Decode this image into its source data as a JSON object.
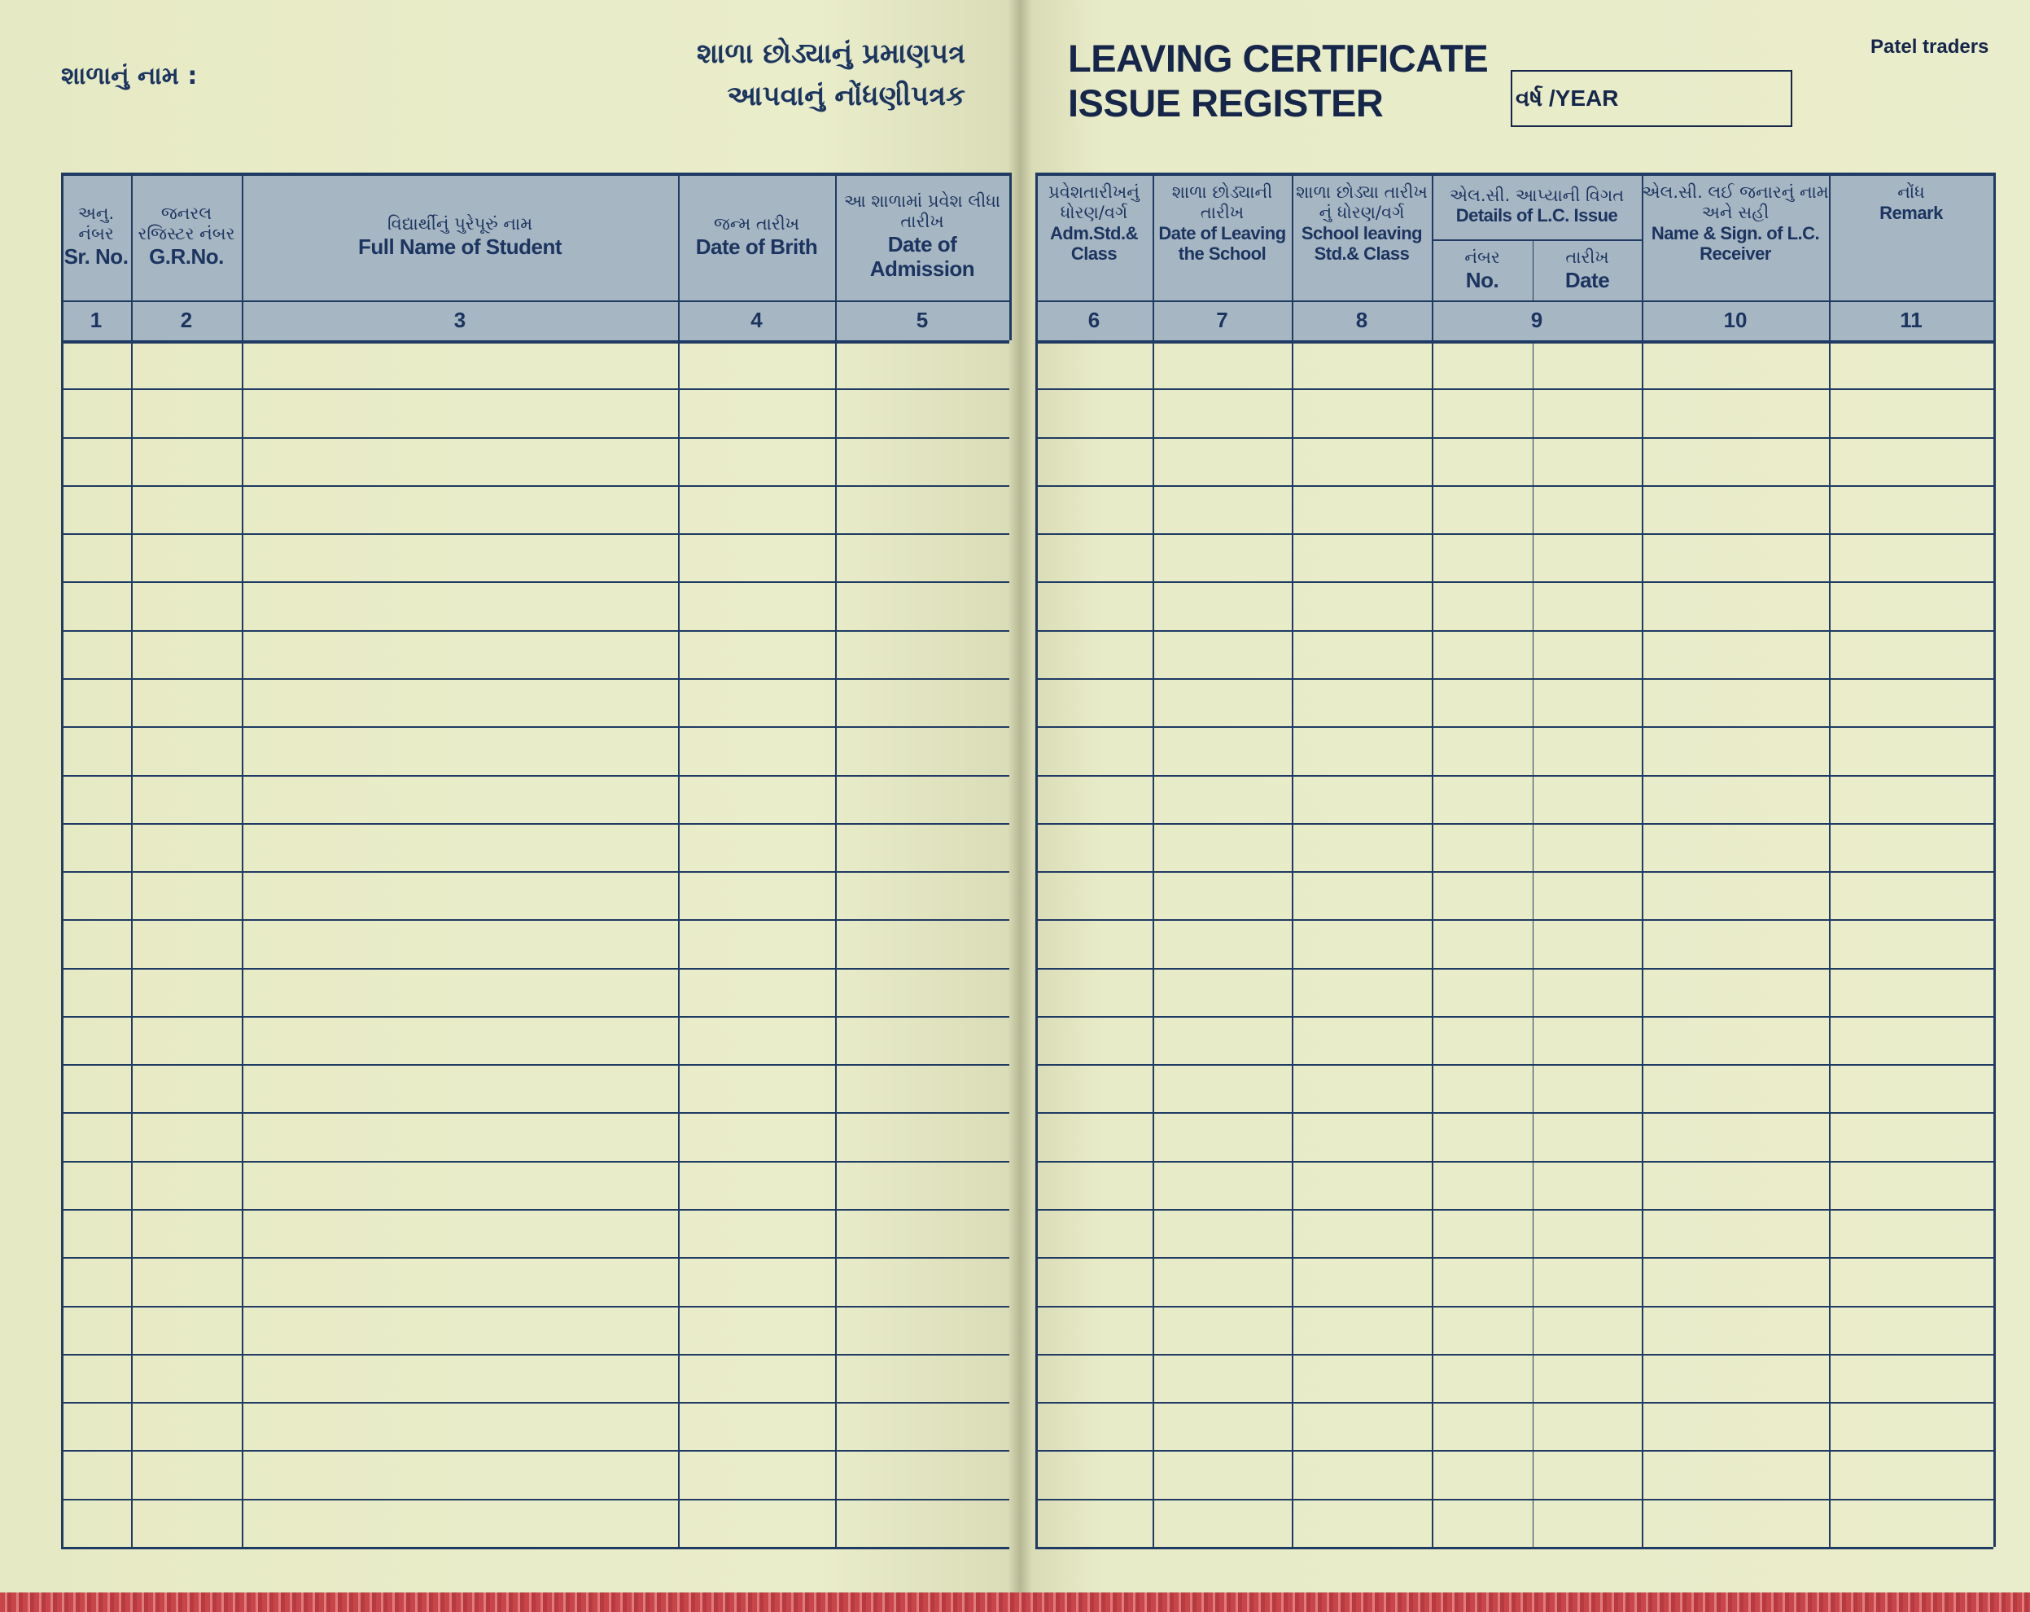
{
  "header": {
    "school_name_label": "શાળાનું નામ :",
    "title_gu_line1": "શાળા છોડ્યાનું પ્રમાણપત્ર",
    "title_gu_line2": "આપવાનું નોંધણીપત્રક",
    "title_en_line1": "LEAVING CERTIFICATE",
    "title_en_line2": "ISSUE REGISTER",
    "year_label": "વર્ષ /YEAR",
    "publisher": "Patel traders"
  },
  "colors": {
    "paper": "#e8ebc6",
    "header_fill": "#a7b6c3",
    "ink": "#1f3a63"
  },
  "left_columns": [
    {
      "gu": "અનુ. નંબર",
      "en": "Sr. No.",
      "num": "1"
    },
    {
      "gu": "જનરલ રજિસ્ટર નંબર",
      "en": "G.R.No.",
      "num": "2"
    },
    {
      "gu": "વિદ્યાર્થીનું પુરેપૂરું નામ",
      "en": "Full Name of Student",
      "num": "3"
    },
    {
      "gu": "જન્મ તારીખ",
      "en": "Date of Brith",
      "num": "4"
    },
    {
      "gu": "આ શાળામાં પ્રવેશ લીધા તારીખ",
      "en": "Date of Admission",
      "num": "5"
    }
  ],
  "right_columns": [
    {
      "gu": "પ્રવેશતારીખનું ધોરણ/વર્ગ",
      "en": "Adm.Std.& Class",
      "num": "6"
    },
    {
      "gu": "શાળા છોડ્યાની તારીખ",
      "en": "Date of Leaving the School",
      "num": "7"
    },
    {
      "gu": "શાળા છોડ્યા તારીખ નું ધોરણ/વર્ગ",
      "en": "School leaving Std.& Class",
      "num": "8"
    },
    {
      "gu": "એલ.સી. આપ્યાની વિગત",
      "en": "Details of L.C. Issue",
      "num": "9",
      "sub": [
        {
          "gu": "નંબર",
          "en": "No."
        },
        {
          "gu": "તારીખ",
          "en": "Date"
        }
      ]
    },
    {
      "gu": "એલ.સી. લઈ જનારનું નામ અને સહી",
      "en": "Name & Sign. of L.C. Receiver",
      "num": "10"
    },
    {
      "gu": "નોંધ",
      "en": "Remark",
      "num": "11"
    }
  ],
  "blank_rows": 25
}
